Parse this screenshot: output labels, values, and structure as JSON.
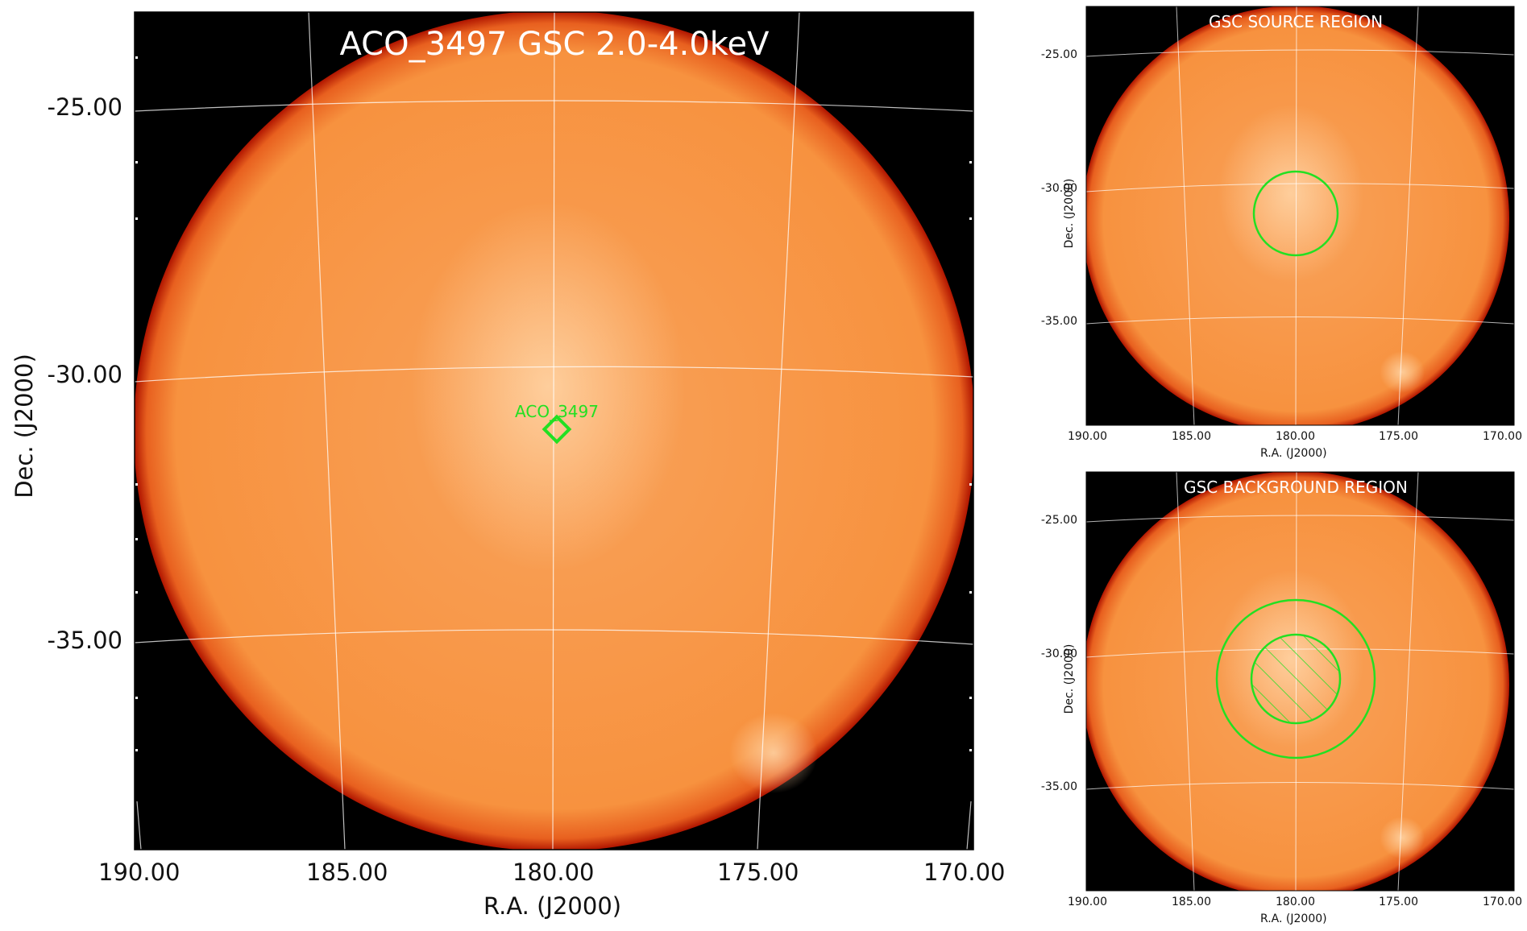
{
  "main": {
    "title": "ACO_3497 GSC 2.0-4.0keV",
    "xlabel": "R.A. (J2000)",
    "ylabel": "Dec. (J2000)",
    "xticks": [
      "190.00",
      "185.00",
      "180.00",
      "175.00",
      "170.00"
    ],
    "yticks": [
      "-25.00",
      "-30.00",
      "-35.00"
    ],
    "marker_label": "ACO_3497"
  },
  "source_panel": {
    "title": "GSC SOURCE REGION",
    "xlabel": "R.A. (J2000)",
    "ylabel": "Dec. (J2000)",
    "xticks": [
      "190.00",
      "185.00",
      "180.00",
      "175.00",
      "170.00"
    ],
    "yticks": [
      "-25.00",
      "-30.00",
      "-35.00"
    ]
  },
  "background_panel": {
    "title": "GSC BACKGROUND REGION",
    "xlabel": "R.A. (J2000)",
    "ylabel": "Dec. (J2000)",
    "xticks": [
      "190.00",
      "185.00",
      "180.00",
      "175.00",
      "170.00"
    ],
    "yticks": [
      "-25.00",
      "-30.00",
      "-35.00"
    ]
  },
  "colors": {
    "image_fill": "#f7923f",
    "image_glow": "#ffc48a",
    "image_edge": "#c81a05",
    "background": "#000000",
    "region": "#22e022",
    "grid": "#ffffff"
  }
}
